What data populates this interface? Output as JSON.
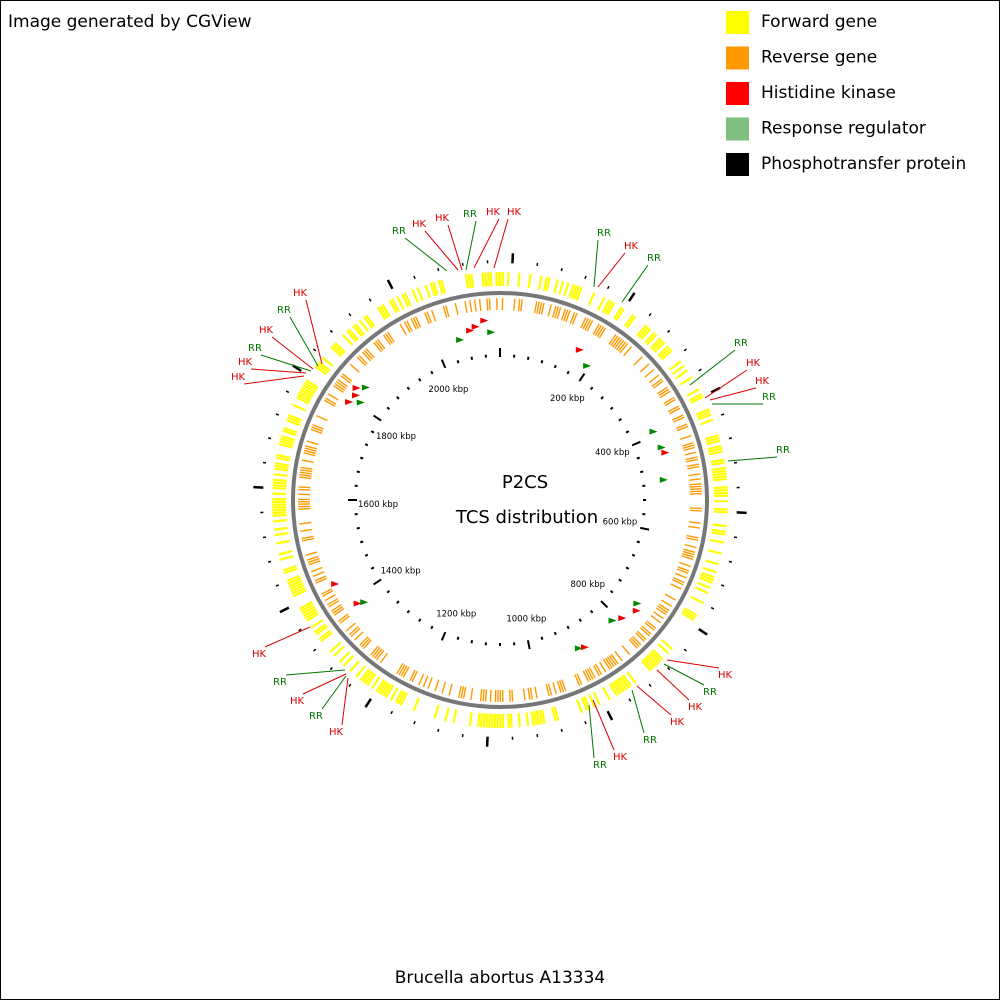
{
  "header": {
    "credit": "Image generated by CGView"
  },
  "legend": [
    {
      "label": "Forward gene",
      "color": "#ffff00"
    },
    {
      "label": "Reverse gene",
      "color": "#ff9900"
    },
    {
      "label": "Histidine kinase",
      "color": "#ff0000"
    },
    {
      "label": "Response regulator",
      "color": "#7fbf7f"
    },
    {
      "label": "Phosphotransfer protein",
      "color": "#000000"
    }
  ],
  "map": {
    "title": "P2CS",
    "subtitle": "TCS distribution",
    "scale_labels": [
      "200 kbp",
      "400 kbp",
      "600 kbp",
      "800 kbp",
      "1000 kbp",
      "1200 kbp",
      "1400 kbp",
      "1600 kbp",
      "1800 kbp",
      "2000 kbp"
    ],
    "features": [
      {
        "label": "RR",
        "color": "#007700"
      },
      {
        "label": "HK",
        "color": "#dd0000"
      },
      {
        "label": "HK",
        "color": "#dd0000"
      },
      {
        "label": "RR",
        "color": "#007700"
      },
      {
        "label": "HK",
        "color": "#dd0000"
      },
      {
        "label": "HK",
        "color": "#dd0000"
      },
      {
        "label": "RR",
        "color": "#007700"
      },
      {
        "label": "HK",
        "color": "#dd0000"
      },
      {
        "label": "RR",
        "color": "#007700"
      },
      {
        "label": "RR",
        "color": "#007700"
      },
      {
        "label": "HK",
        "color": "#dd0000"
      },
      {
        "label": "HK",
        "color": "#dd0000"
      },
      {
        "label": "RR",
        "color": "#007700"
      },
      {
        "label": "RR",
        "color": "#007700"
      },
      {
        "label": "HK",
        "color": "#dd0000"
      },
      {
        "label": "RR",
        "color": "#007700"
      },
      {
        "label": "HK",
        "color": "#dd0000"
      },
      {
        "label": "HK",
        "color": "#dd0000"
      },
      {
        "label": "RR",
        "color": "#007700"
      },
      {
        "label": "HK",
        "color": "#dd0000"
      },
      {
        "label": "RR",
        "color": "#007700"
      },
      {
        "label": "HK",
        "color": "#dd0000"
      },
      {
        "label": "RR",
        "color": "#007700"
      },
      {
        "label": "HK",
        "color": "#dd0000"
      },
      {
        "label": "RR",
        "color": "#007700"
      },
      {
        "label": "HK",
        "color": "#dd0000"
      },
      {
        "label": "HK",
        "color": "#dd0000"
      },
      {
        "label": "RR",
        "color": "#007700"
      },
      {
        "label": "HK",
        "color": "#dd0000"
      },
      {
        "label": "RR",
        "color": "#007700"
      },
      {
        "label": "HK",
        "color": "#dd0000"
      },
      {
        "label": "HK",
        "color": "#dd0000"
      }
    ]
  },
  "footer": {
    "organism": "Brucella abortus A13334"
  }
}
